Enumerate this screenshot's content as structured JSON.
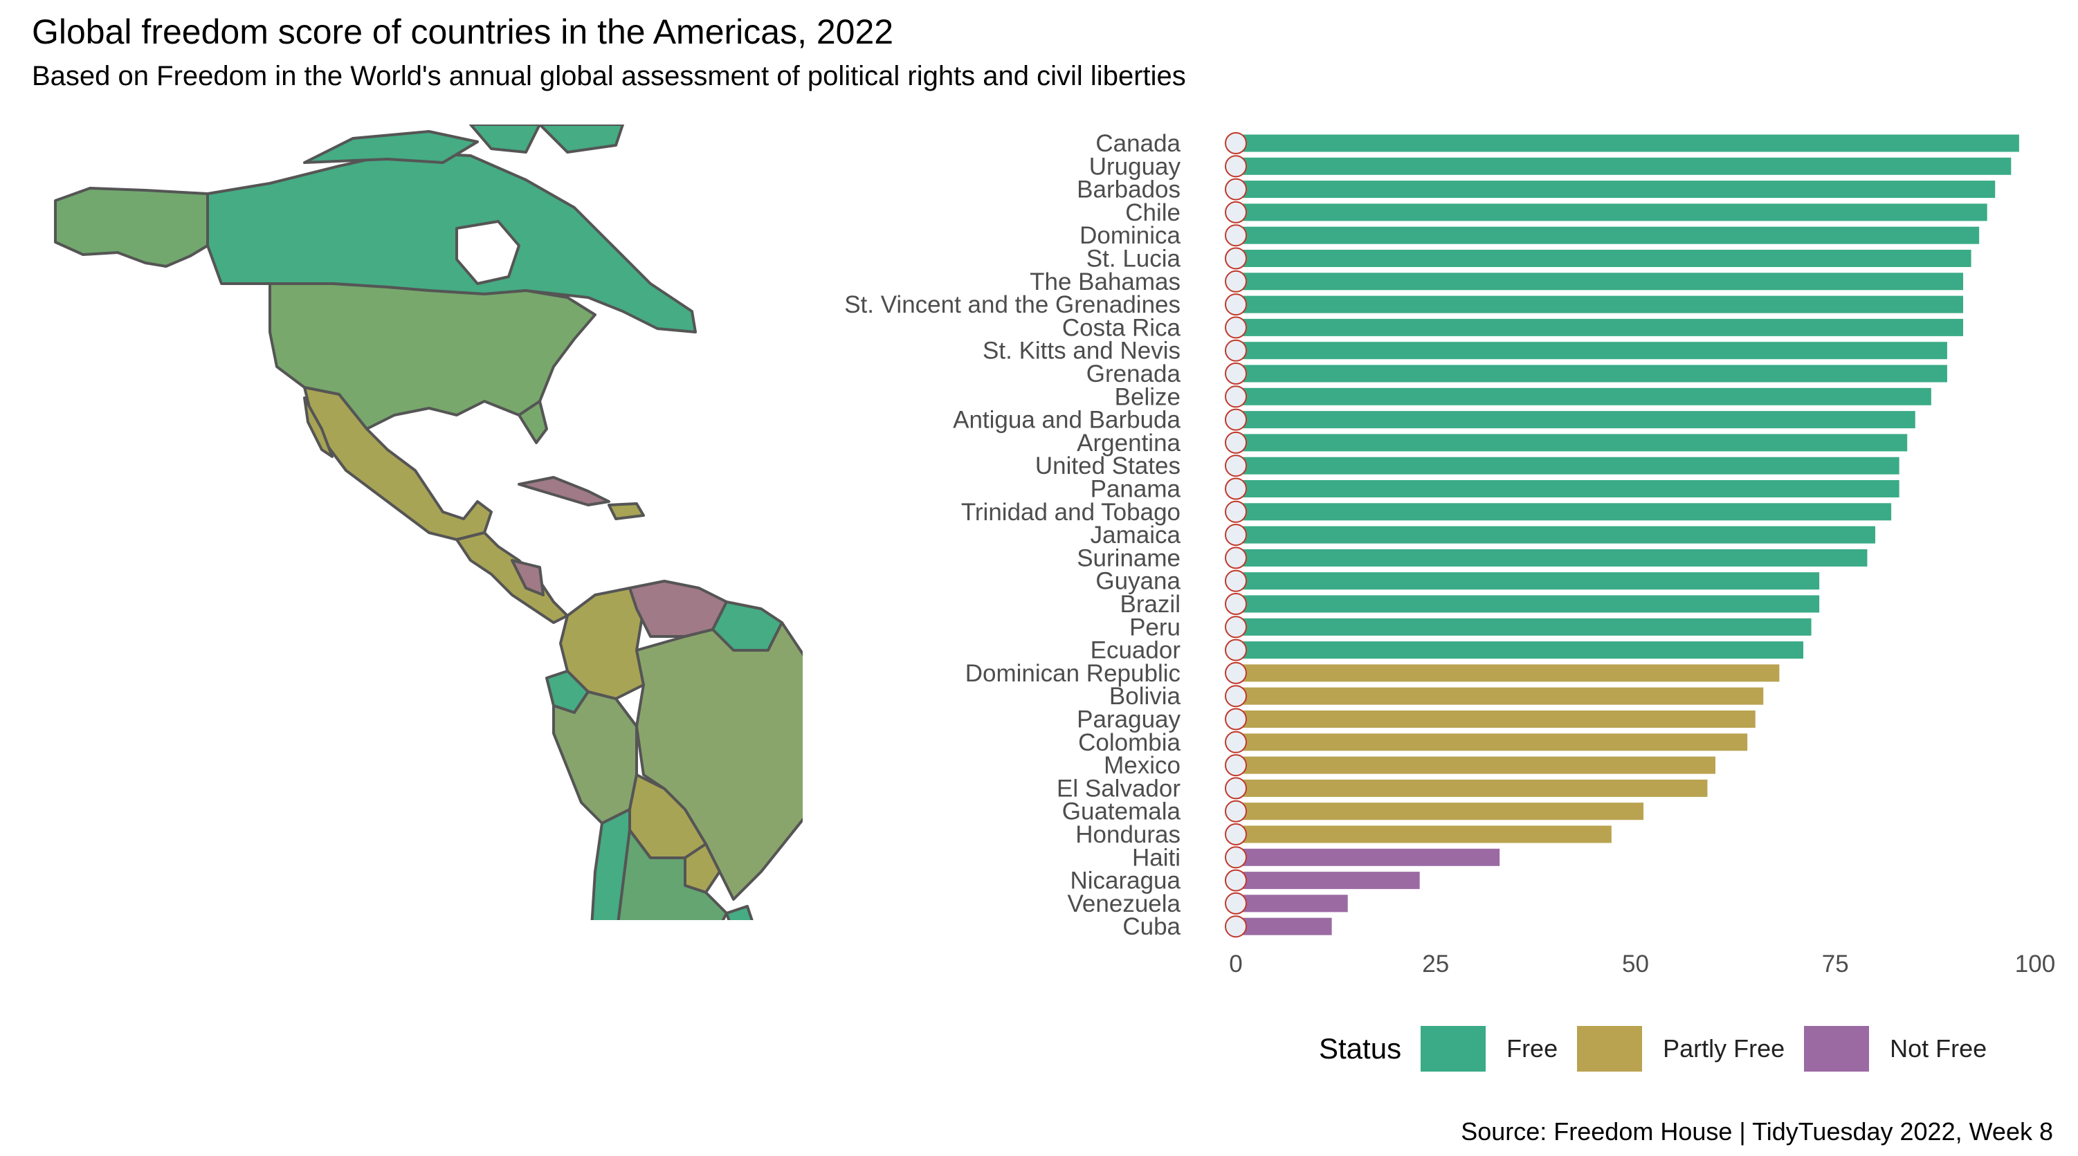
{
  "title": "Global freedom score of countries in the Americas, 2022",
  "subtitle": "Based on Freedom in the World's annual global assessment of political rights and civil liberties",
  "caption": "Source: Freedom House | TidyTuesday 2022, Week 8",
  "legend": {
    "title": "Status",
    "items": [
      {
        "label": "Free",
        "color": "#3aab86"
      },
      {
        "label": "Partly Free",
        "color": "#b9a350"
      },
      {
        "label": "Not Free",
        "color": "#9b6aa3"
      }
    ]
  },
  "chart_data": {
    "type": "bar",
    "orientation": "horizontal",
    "xlim": [
      0,
      100
    ],
    "xticks": [
      0,
      25,
      50,
      75,
      100
    ],
    "grid": false,
    "legend_position": "bottom",
    "bars": [
      {
        "country": "Canada",
        "score": 98,
        "status": "Free"
      },
      {
        "country": "Uruguay",
        "score": 97,
        "status": "Free"
      },
      {
        "country": "Barbados",
        "score": 95,
        "status": "Free"
      },
      {
        "country": "Chile",
        "score": 94,
        "status": "Free"
      },
      {
        "country": "Dominica",
        "score": 93,
        "status": "Free"
      },
      {
        "country": "St. Lucia",
        "score": 92,
        "status": "Free"
      },
      {
        "country": "The Bahamas",
        "score": 91,
        "status": "Free"
      },
      {
        "country": "St. Vincent and the Grenadines",
        "score": 91,
        "status": "Free"
      },
      {
        "country": "Costa Rica",
        "score": 91,
        "status": "Free"
      },
      {
        "country": "St. Kitts and Nevis",
        "score": 89,
        "status": "Free"
      },
      {
        "country": "Grenada",
        "score": 89,
        "status": "Free"
      },
      {
        "country": "Belize",
        "score": 87,
        "status": "Free"
      },
      {
        "country": "Antigua and Barbuda",
        "score": 85,
        "status": "Free"
      },
      {
        "country": "Argentina",
        "score": 84,
        "status": "Free"
      },
      {
        "country": "United States",
        "score": 83,
        "status": "Free"
      },
      {
        "country": "Panama",
        "score": 83,
        "status": "Free"
      },
      {
        "country": "Trinidad and Tobago",
        "score": 82,
        "status": "Free"
      },
      {
        "country": "Jamaica",
        "score": 80,
        "status": "Free"
      },
      {
        "country": "Suriname",
        "score": 79,
        "status": "Free"
      },
      {
        "country": "Guyana",
        "score": 73,
        "status": "Free"
      },
      {
        "country": "Brazil",
        "score": 73,
        "status": "Free"
      },
      {
        "country": "Peru",
        "score": 72,
        "status": "Free"
      },
      {
        "country": "Ecuador",
        "score": 71,
        "status": "Free"
      },
      {
        "country": "Dominican Republic",
        "score": 68,
        "status": "Partly Free"
      },
      {
        "country": "Bolivia",
        "score": 66,
        "status": "Partly Free"
      },
      {
        "country": "Paraguay",
        "score": 65,
        "status": "Partly Free"
      },
      {
        "country": "Colombia",
        "score": 64,
        "status": "Partly Free"
      },
      {
        "country": "Mexico",
        "score": 60,
        "status": "Partly Free"
      },
      {
        "country": "El Salvador",
        "score": 59,
        "status": "Partly Free"
      },
      {
        "country": "Guatemala",
        "score": 51,
        "status": "Partly Free"
      },
      {
        "country": "Honduras",
        "score": 47,
        "status": "Partly Free"
      },
      {
        "country": "Haiti",
        "score": 33,
        "status": "Not Free"
      },
      {
        "country": "Nicaragua",
        "score": 23,
        "status": "Not Free"
      },
      {
        "country": "Venezuela",
        "score": 14,
        "status": "Not Free"
      },
      {
        "country": "Cuba",
        "score": 12,
        "status": "Not Free"
      }
    ]
  }
}
